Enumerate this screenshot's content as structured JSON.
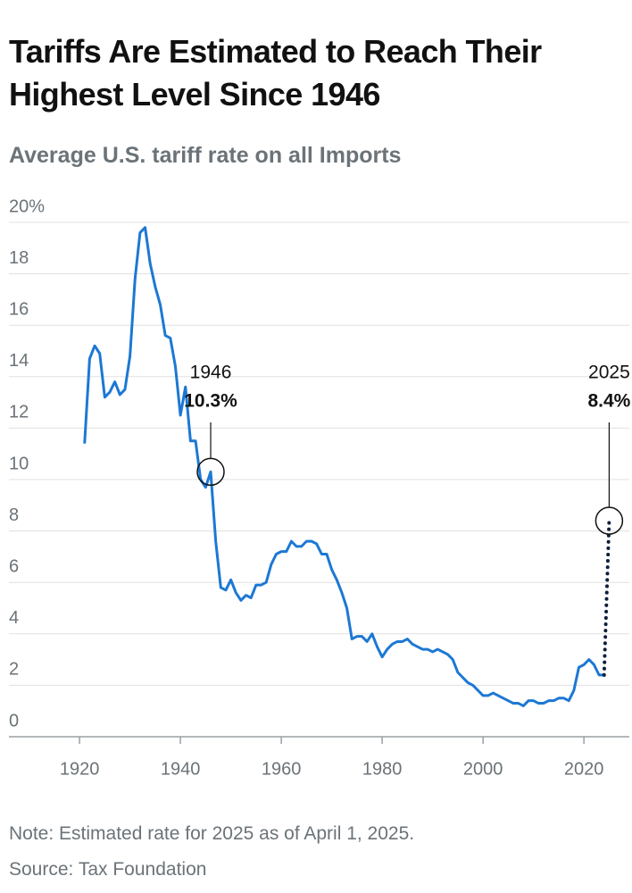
{
  "chart_data": {
    "type": "line",
    "title": "Tariffs Are Estimated to Reach Their Highest Level Since 1946",
    "subtitle": "Average U.S. tariff rate on all Imports",
    "note": "Note: Estimated rate for 2025 as of April 1, 2025.",
    "source": "Source: Tax Foundation",
    "color": "#1c78d4",
    "x": [
      1921,
      1922,
      1923,
      1924,
      1925,
      1926,
      1927,
      1928,
      1929,
      1930,
      1931,
      1932,
      1933,
      1934,
      1935,
      1936,
      1937,
      1938,
      1939,
      1940,
      1941,
      1942,
      1943,
      1944,
      1945,
      1946,
      1947,
      1948,
      1949,
      1950,
      1951,
      1952,
      1953,
      1954,
      1955,
      1956,
      1957,
      1958,
      1959,
      1960,
      1961,
      1962,
      1963,
      1964,
      1965,
      1966,
      1967,
      1968,
      1969,
      1970,
      1971,
      1972,
      1973,
      1974,
      1975,
      1976,
      1977,
      1978,
      1979,
      1980,
      1981,
      1982,
      1983,
      1984,
      1985,
      1986,
      1987,
      1988,
      1989,
      1990,
      1991,
      1992,
      1993,
      1994,
      1995,
      1996,
      1997,
      1998,
      1999,
      2000,
      2001,
      2002,
      2003,
      2004,
      2005,
      2006,
      2007,
      2008,
      2009,
      2010,
      2011,
      2012,
      2013,
      2014,
      2015,
      2016,
      2017,
      2018,
      2019,
      2020,
      2021,
      2022,
      2023,
      2024
    ],
    "values": [
      11.4,
      14.7,
      15.2,
      14.9,
      13.2,
      13.4,
      13.8,
      13.3,
      13.5,
      14.8,
      17.8,
      19.6,
      19.8,
      18.4,
      17.5,
      16.8,
      15.6,
      15.5,
      14.4,
      12.5,
      13.6,
      11.5,
      11.5,
      10.0,
      9.7,
      10.3,
      7.6,
      5.8,
      5.7,
      6.1,
      5.6,
      5.3,
      5.5,
      5.4,
      5.9,
      5.9,
      6.0,
      6.7,
      7.1,
      7.2,
      7.2,
      7.6,
      7.4,
      7.4,
      7.6,
      7.6,
      7.5,
      7.1,
      7.1,
      6.5,
      6.1,
      5.6,
      5.0,
      3.8,
      3.9,
      3.9,
      3.7,
      4.0,
      3.5,
      3.1,
      3.4,
      3.6,
      3.7,
      3.7,
      3.8,
      3.6,
      3.5,
      3.4,
      3.4,
      3.3,
      3.4,
      3.3,
      3.2,
      3.0,
      2.5,
      2.3,
      2.1,
      2.0,
      1.8,
      1.6,
      1.6,
      1.7,
      1.6,
      1.5,
      1.4,
      1.3,
      1.3,
      1.2,
      1.4,
      1.4,
      1.3,
      1.3,
      1.4,
      1.4,
      1.5,
      1.5,
      1.4,
      1.8,
      2.7,
      2.8,
      3.0,
      2.8,
      2.4,
      2.4
    ],
    "estimate": {
      "x": [
        2024,
        2025
      ],
      "values": [
        2.4,
        8.4
      ],
      "color": "#0d1f3c",
      "style": "dotted"
    },
    "annotations": [
      {
        "x": 1946,
        "value": 10.3,
        "value_label": "10.3%"
      },
      {
        "x": 2025,
        "value": 8.4,
        "value_label": "8.4%"
      }
    ],
    "xlim": [
      1906,
      2029
    ],
    "xticks": [
      1920,
      1940,
      1960,
      1980,
      2000,
      2020
    ],
    "ylim": [
      0,
      20
    ],
    "yticks": [
      0,
      2,
      4,
      6,
      8,
      10,
      12,
      14,
      16,
      18,
      {
        "value": 20,
        "label": "20%"
      }
    ],
    "grid": true
  }
}
